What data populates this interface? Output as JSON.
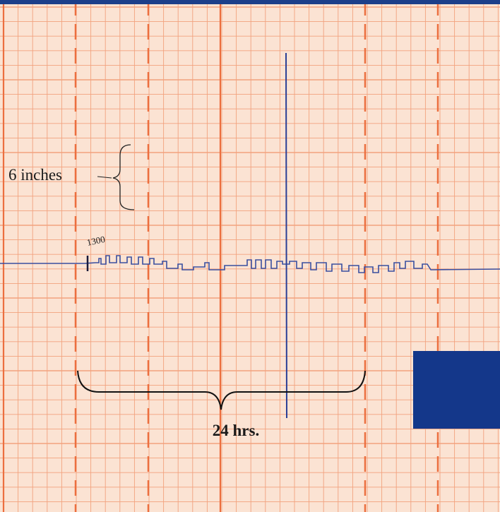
{
  "annotations": {
    "height_label": "6 inches",
    "duration_label": "24 hrs.",
    "time_mark": "1300"
  }
}
